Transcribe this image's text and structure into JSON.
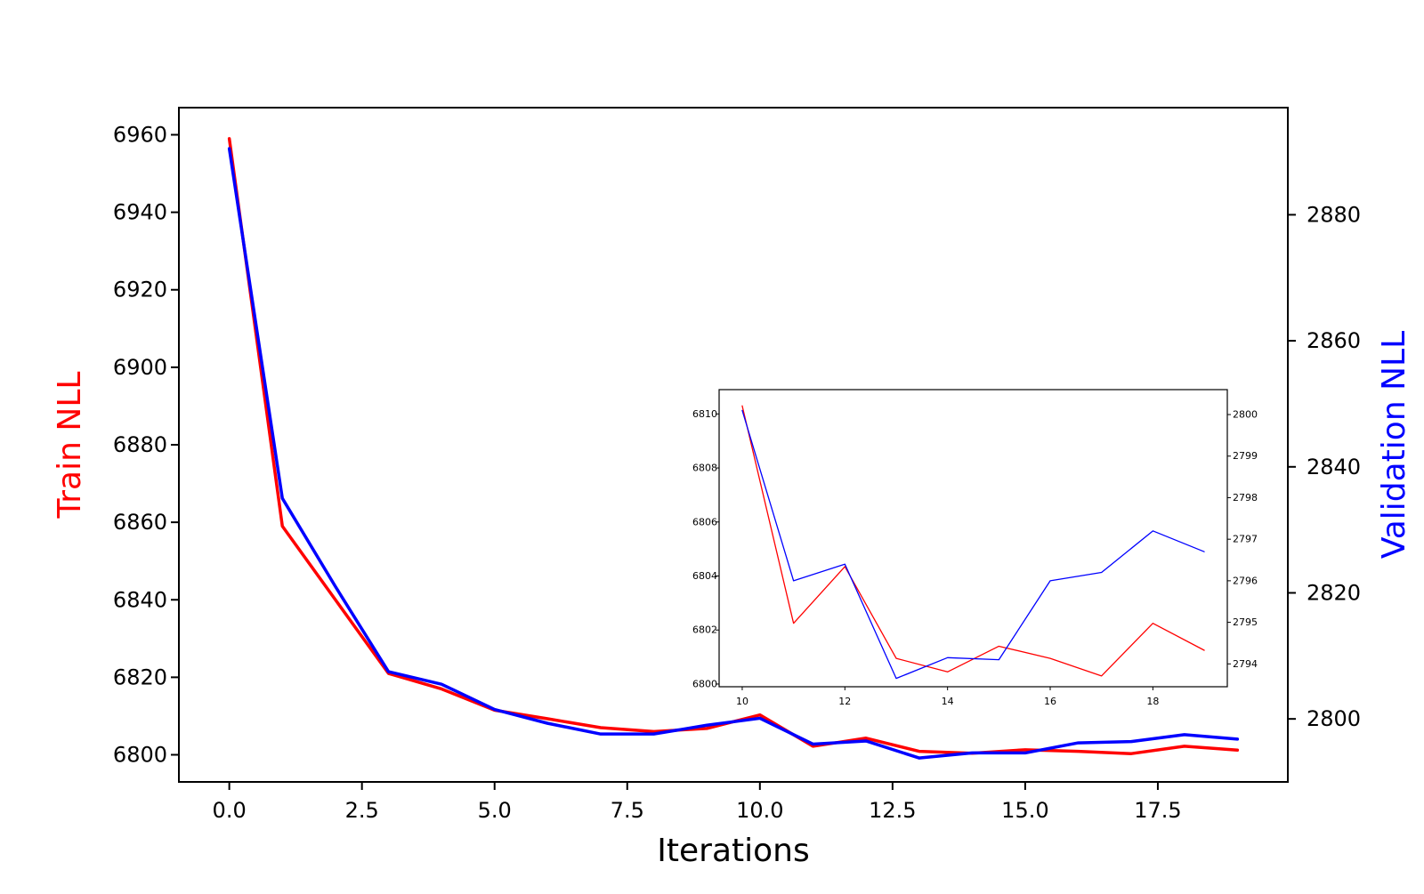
{
  "chart_data": [
    {
      "type": "line",
      "role": "main",
      "xlabel": "Iterations",
      "ylabel_left": "Train NLL",
      "ylabel_right": "Validation NLL",
      "xlim": [
        -0.95,
        19.95
      ],
      "ylim_left": [
        6793,
        6967
      ],
      "ylim_right": [
        2790,
        2897
      ],
      "xticks": [
        0.0,
        2.5,
        5.0,
        7.5,
        10.0,
        12.5,
        15.0,
        17.5
      ],
      "xtick_labels": [
        "0.0",
        "2.5",
        "5.0",
        "7.5",
        "10.0",
        "12.5",
        "15.0",
        "17.5"
      ],
      "yticks_left": [
        6800,
        6820,
        6840,
        6860,
        6880,
        6900,
        6920,
        6940,
        6960
      ],
      "yticks_right": [
        2800,
        2820,
        2840,
        2860,
        2880
      ],
      "series": [
        {
          "name": "Train NLL",
          "axis": "left",
          "color": "#ff0000",
          "x": [
            0,
            1,
            2,
            3,
            4,
            5,
            6,
            7,
            8,
            9,
            10,
            11,
            12,
            13,
            14,
            15,
            16,
            17,
            18,
            19
          ],
          "values": [
            6959,
            6859,
            6840,
            6821,
            6817,
            6811.5,
            6809.3,
            6807,
            6806,
            6806.8,
            6810.3,
            6802.2,
            6804.3,
            6800.9,
            6800.4,
            6801.3,
            6800.9,
            6800.3,
            6802.2,
            6801.2
          ]
        },
        {
          "name": "Validation NLL",
          "axis": "right",
          "color": "#0000ff",
          "x": [
            0,
            1,
            2,
            3,
            4,
            5,
            6,
            7,
            8,
            9,
            10,
            11,
            12,
            13,
            14,
            15,
            16,
            17,
            18,
            19
          ],
          "values": [
            2890.5,
            2835,
            2821,
            2807.5,
            2805.5,
            2801.5,
            2799.3,
            2797.6,
            2797.6,
            2799,
            2800.1,
            2796,
            2796.5,
            2793.8,
            2794.6,
            2794.6,
            2796.2,
            2796.4,
            2797.5,
            2796.8
          ]
        }
      ]
    },
    {
      "type": "line",
      "role": "inset",
      "xlim": [
        9.55,
        19.45
      ],
      "ylim_left": [
        6799.9,
        6810.9
      ],
      "ylim_right": [
        2793.45,
        2800.6
      ],
      "xticks": [
        10,
        12,
        14,
        16,
        18
      ],
      "xtick_labels": [
        "10",
        "12",
        "14",
        "16",
        "18"
      ],
      "yticks_left": [
        6800,
        6802,
        6804,
        6806,
        6808,
        6810
      ],
      "yticks_right": [
        2794,
        2795,
        2796,
        2797,
        2798,
        2799,
        2800
      ],
      "series": [
        {
          "name": "Train NLL",
          "axis": "left",
          "color": "#ff0000",
          "x": [
            10,
            11,
            12,
            13,
            14,
            15,
            16,
            17,
            18,
            19
          ],
          "values": [
            6810.3,
            6802.25,
            6804.35,
            6800.95,
            6800.45,
            6801.4,
            6800.95,
            6800.3,
            6802.25,
            6801.25
          ]
        },
        {
          "name": "Validation NLL",
          "axis": "right",
          "color": "#0000ff",
          "x": [
            10,
            11,
            12,
            13,
            14,
            15,
            16,
            17,
            18,
            19
          ],
          "values": [
            2800.1,
            2796,
            2796.4,
            2793.65,
            2794.15,
            2794.1,
            2796,
            2796.2,
            2797.2,
            2796.7
          ]
        }
      ]
    }
  ]
}
